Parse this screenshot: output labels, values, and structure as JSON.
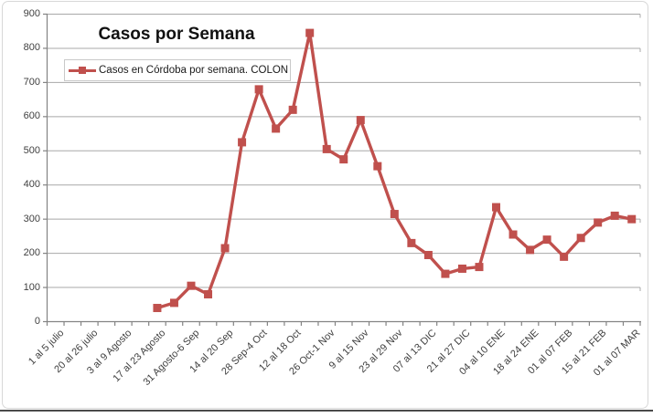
{
  "chart": {
    "title": "Casos por Semana",
    "legend_label": "Casos en Córdoba por semana. COLON"
  },
  "colors": {
    "series": "#C0504D",
    "gridline": "#A8A8A8",
    "axis": "#848484",
    "tick_label": "#3F3F3F",
    "title_text": "#111111",
    "legend_border": "#C9C9C9",
    "frame_border": "#D8D8D8",
    "bottom_edge": "#4A4A4A"
  },
  "chart_data": {
    "type": "line",
    "title": "Casos por Semana",
    "legend_entries": [
      "Casos en Córdoba por semana. COLON"
    ],
    "legend_position": "top-left-inside",
    "grid": true,
    "y_axis": {
      "min": 0,
      "max": 900,
      "step": 100,
      "tick_labels": [
        "0",
        "100",
        "200",
        "300",
        "400",
        "500",
        "600",
        "700",
        "800",
        "900"
      ]
    },
    "x_axis": {
      "n_slots": 35,
      "note": "weekly categories; every second slot is labeled",
      "tick_labels": [
        {
          "slot": 1,
          "text": "1 al 5 julio"
        },
        {
          "slot": 3,
          "text": "20 al 26 julio"
        },
        {
          "slot": 5,
          "text": "3 al 9 Agosto"
        },
        {
          "slot": 7,
          "text": "17 al 23 Agosto"
        },
        {
          "slot": 9,
          "text": "31 Agosto-6 Sep"
        },
        {
          "slot": 11,
          "text": "14 al 20 Sep"
        },
        {
          "slot": 13,
          "text": "28 Sep-4 Oct"
        },
        {
          "slot": 15,
          "text": "12 al 18 Oct"
        },
        {
          "slot": 17,
          "text": "26 Oct-1 Nov"
        },
        {
          "slot": 19,
          "text": "9 al 15 Nov"
        },
        {
          "slot": 21,
          "text": "23 al 29 Nov"
        },
        {
          "slot": 23,
          "text": "07 al 13 DIC"
        },
        {
          "slot": 25,
          "text": "21 al 27 DIC"
        },
        {
          "slot": 27,
          "text": "04 al 10 ENE"
        },
        {
          "slot": 29,
          "text": "18 al 24 ENE"
        },
        {
          "slot": 31,
          "text": "01 al 07 FEB"
        },
        {
          "slot": 33,
          "text": "15 al 21 FEB"
        },
        {
          "slot": 35,
          "text": "01 al 07 MAR"
        }
      ]
    },
    "series": [
      {
        "name": "Casos en Córdoba por semana. COLON",
        "color": "#C0504D",
        "marker": "square",
        "points": [
          {
            "slot": 7,
            "value": 40
          },
          {
            "slot": 8,
            "value": 55
          },
          {
            "slot": 9,
            "value": 105
          },
          {
            "slot": 10,
            "value": 80
          },
          {
            "slot": 11,
            "value": 215
          },
          {
            "slot": 12,
            "value": 525
          },
          {
            "slot": 13,
            "value": 680
          },
          {
            "slot": 14,
            "value": 565
          },
          {
            "slot": 15,
            "value": 620
          },
          {
            "slot": 16,
            "value": 845
          },
          {
            "slot": 17,
            "value": 505
          },
          {
            "slot": 18,
            "value": 475
          },
          {
            "slot": 19,
            "value": 590
          },
          {
            "slot": 20,
            "value": 455
          },
          {
            "slot": 21,
            "value": 315
          },
          {
            "slot": 22,
            "value": 230
          },
          {
            "slot": 23,
            "value": 195
          },
          {
            "slot": 24,
            "value": 140
          },
          {
            "slot": 25,
            "value": 155
          },
          {
            "slot": 26,
            "value": 160
          },
          {
            "slot": 27,
            "value": 335
          },
          {
            "slot": 28,
            "value": 255
          },
          {
            "slot": 29,
            "value": 210
          },
          {
            "slot": 30,
            "value": 240
          },
          {
            "slot": 31,
            "value": 190
          },
          {
            "slot": 32,
            "value": 245
          },
          {
            "slot": 33,
            "value": 290
          },
          {
            "slot": 34,
            "value": 310
          },
          {
            "slot": 35,
            "value": 300
          }
        ]
      }
    ]
  }
}
